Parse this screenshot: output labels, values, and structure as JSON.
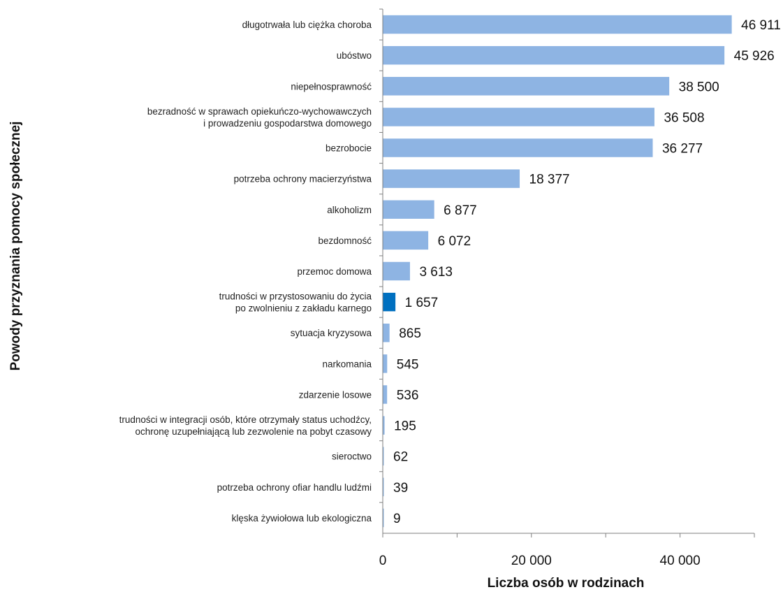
{
  "chart_data": {
    "type": "bar",
    "orientation": "horizontal",
    "title": "",
    "xlabel": "Liczba osób w rodzinach",
    "ylabel": "Powody przyznania pomocy społecznej",
    "xlim": [
      0,
      50000
    ],
    "xticks": [
      0,
      20000,
      40000
    ],
    "xtick_labels": [
      "0",
      "20 000",
      "40 000"
    ],
    "grid": false,
    "legend": "none",
    "categories": [
      [
        "długotrwała lub ciężka choroba"
      ],
      [
        "ubóstwo"
      ],
      [
        "niepełnosprawność"
      ],
      [
        "bezradność w sprawach opiekuńczo-wychowawczych",
        "i prowadzeniu gospodarstwa domowego"
      ],
      [
        "bezrobocie"
      ],
      [
        "potrzeba ochrony macierzyństwa"
      ],
      [
        "alkoholizm"
      ],
      [
        "bezdomność"
      ],
      [
        "przemoc domowa"
      ],
      [
        "trudności w przystosowaniu do życia",
        "po zwolnieniu z zakładu karnego"
      ],
      [
        "sytuacja kryzysowa"
      ],
      [
        "narkomania"
      ],
      [
        "zdarzenie losowe"
      ],
      [
        "trudności w integracji osób, które otrzymały status uchodźcy,",
        "ochronę uzupełniającą lub zezwolenie na pobyt czasowy"
      ],
      [
        "sieroctwo"
      ],
      [
        "potrzeba ochrony ofiar handlu ludźmi"
      ],
      [
        "klęska żywiołowa lub ekologiczna"
      ]
    ],
    "values": [
      46911,
      45926,
      38500,
      36508,
      36277,
      18377,
      6877,
      6072,
      3613,
      1657,
      865,
      545,
      536,
      195,
      62,
      39,
      9
    ],
    "value_labels": [
      "46 911",
      "45 926",
      "38 500",
      "36 508",
      "36 277",
      "18 377",
      "6 877",
      "6 072",
      "3 613",
      "1 657",
      "865",
      "545",
      "536",
      "195",
      "62",
      "39",
      "9"
    ],
    "highlight_index": 9,
    "colors": {
      "bar": "#8eb4e3",
      "highlight": "#0070c0",
      "axis": "#7f7f7f"
    }
  }
}
